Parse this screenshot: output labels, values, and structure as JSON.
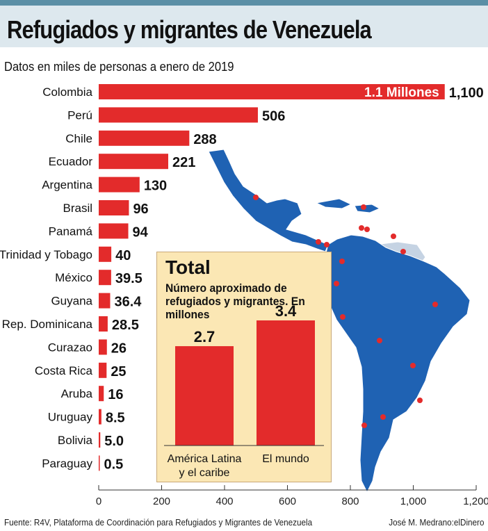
{
  "header": {
    "title": "Refugiados y migrantes de Venezuela",
    "subtitle": "Datos en miles de personas a enero de 2019"
  },
  "chart_data": [
    {
      "type": "bar",
      "orientation": "horizontal",
      "unit": "miles de personas",
      "categories": [
        "Colombia",
        "Perú",
        "Chile",
        "Ecuador",
        "Argentina",
        "Brasil",
        "Panamá",
        "Trinidad y Tobago",
        "México",
        "Guyana",
        "Rep. Dominicana",
        "Curazao",
        "Costa Rica",
        "Aruba",
        "Uruguay",
        "Bolivia",
        "Paraguay"
      ],
      "values": [
        1100,
        506,
        288,
        221,
        130,
        96,
        94,
        40,
        39.5,
        36.4,
        28.5,
        26,
        25,
        16,
        8.5,
        5.0,
        0.5
      ],
      "value_labels": [
        "1,100",
        "506",
        "288",
        "221",
        "130",
        "96",
        "94",
        "40",
        "39.5",
        "36.4",
        "28.5",
        "26",
        "25",
        "16",
        "8.5",
        "5.0",
        "0.5"
      ],
      "annotation": "1.1 Millones",
      "xlim": [
        0,
        1200
      ],
      "xticks": [
        0,
        200,
        400,
        600,
        800,
        1000,
        1200
      ],
      "xtick_labels": [
        "0",
        "200",
        "400",
        "600",
        "800",
        "1,000",
        "1,200"
      ],
      "bar_color": "#e32b2b"
    },
    {
      "type": "bar",
      "title": "Total",
      "subtitle": "Número aproximado de refugiados y migrantes. En millones",
      "categories": [
        "América Latina y el caribe",
        "El mundo"
      ],
      "category_lines": [
        [
          "América Latina",
          "y el caribe"
        ],
        [
          "El mundo"
        ]
      ],
      "values": [
        2.7,
        3.4
      ],
      "value_labels": [
        "2.7",
        "3.4"
      ],
      "bar_color": "#e32b2b"
    }
  ],
  "map": {
    "land_color": "#1f62b3",
    "other_land_color": "#c5d3e3",
    "marker_color": "#e32b2b"
  },
  "footer": {
    "source": "Fuente: R4V, Plataforma de Coordinación para Refugiados y Migrantes de Venezuela",
    "credit": "José M. Medrano:elDinero"
  }
}
